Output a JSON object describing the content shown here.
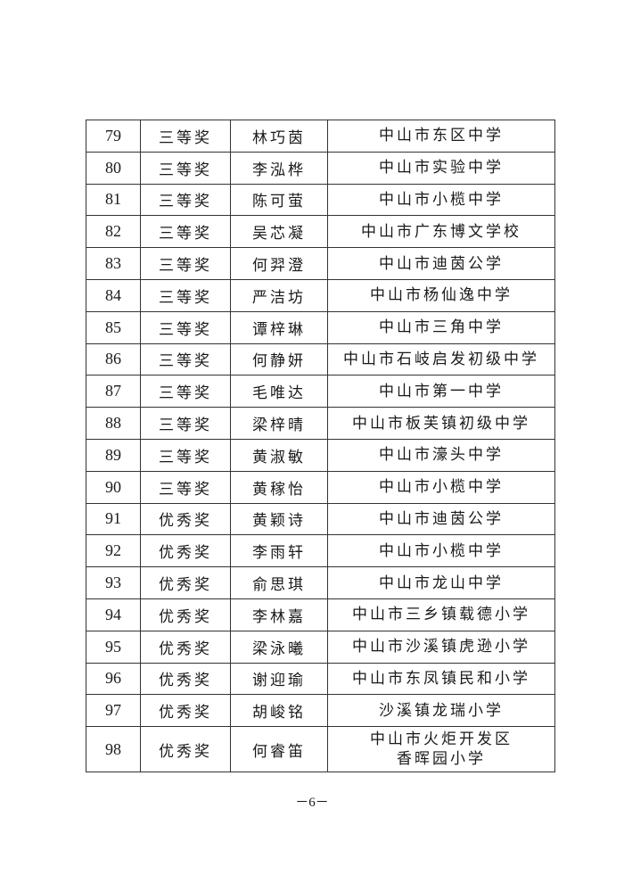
{
  "rows": [
    {
      "no": "79",
      "award": "三等奖",
      "name": "林巧茵",
      "school": [
        "中山市东区中学"
      ]
    },
    {
      "no": "80",
      "award": "三等奖",
      "name": "李泓桦",
      "school": [
        "中山市实验中学"
      ]
    },
    {
      "no": "81",
      "award": "三等奖",
      "name": "陈可萤",
      "school": [
        "中山市小榄中学"
      ]
    },
    {
      "no": "82",
      "award": "三等奖",
      "name": "吴芯凝",
      "school": [
        "中山市广东博文学校"
      ]
    },
    {
      "no": "83",
      "award": "三等奖",
      "name": "何羿澄",
      "school": [
        "中山市迪茵公学"
      ]
    },
    {
      "no": "84",
      "award": "三等奖",
      "name": "严洁坊",
      "school": [
        "中山市杨仙逸中学"
      ]
    },
    {
      "no": "85",
      "award": "三等奖",
      "name": "谭梓琳",
      "school": [
        "中山市三角中学"
      ]
    },
    {
      "no": "86",
      "award": "三等奖",
      "name": "何静妍",
      "school": [
        "中山市石岐启发初级中学"
      ]
    },
    {
      "no": "87",
      "award": "三等奖",
      "name": "毛唯达",
      "school": [
        "中山市第一中学"
      ]
    },
    {
      "no": "88",
      "award": "三等奖",
      "name": "梁梓晴",
      "school": [
        "中山市板芙镇初级中学"
      ]
    },
    {
      "no": "89",
      "award": "三等奖",
      "name": "黄淑敏",
      "school": [
        "中山市濠头中学"
      ]
    },
    {
      "no": "90",
      "award": "三等奖",
      "name": "黄稼怡",
      "school": [
        "中山市小榄中学"
      ]
    },
    {
      "no": "91",
      "award": "优秀奖",
      "name": "黄颖诗",
      "school": [
        "中山市迪茵公学"
      ]
    },
    {
      "no": "92",
      "award": "优秀奖",
      "name": "李雨轩",
      "school": [
        "中山市小榄中学"
      ]
    },
    {
      "no": "93",
      "award": "优秀奖",
      "name": "俞思琪",
      "school": [
        "中山市龙山中学"
      ]
    },
    {
      "no": "94",
      "award": "优秀奖",
      "name": "李林嘉",
      "school": [
        "中山市三乡镇载德小学"
      ]
    },
    {
      "no": "95",
      "award": "优秀奖",
      "name": "梁泳曦",
      "school": [
        "中山市沙溪镇虎逊小学"
      ]
    },
    {
      "no": "96",
      "award": "优秀奖",
      "name": "谢迎瑜",
      "school": [
        "中山市东凤镇民和小学"
      ]
    },
    {
      "no": "97",
      "award": "优秀奖",
      "name": "胡峻铭",
      "school": [
        "沙溪镇龙瑞小学"
      ]
    },
    {
      "no": "98",
      "award": "优秀奖",
      "name": "何睿笛",
      "school": [
        "中山市火炬开发区",
        "香晖园小学"
      ]
    }
  ],
  "page_number": "－6－"
}
